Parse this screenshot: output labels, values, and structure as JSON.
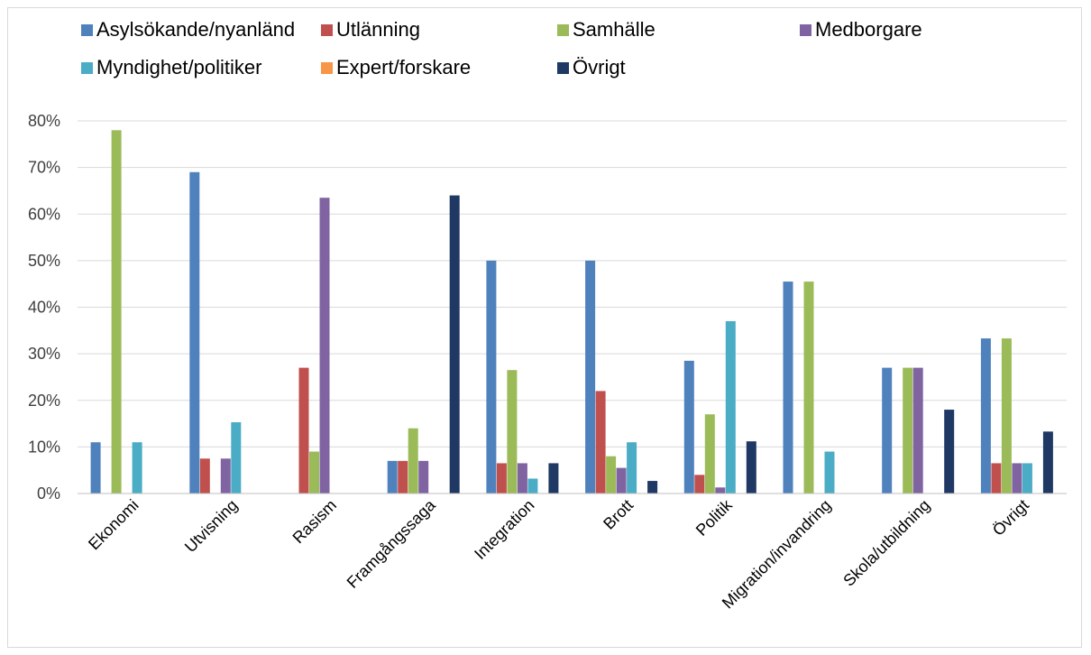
{
  "chart_data": {
    "type": "bar",
    "categories": [
      "Ekonomi",
      "Utvisning",
      "Rasism",
      "Framgångssaga",
      "Integration",
      "Brott",
      "Politik",
      "Migration/invandring",
      "Skola/utbildning",
      "Övrigt"
    ],
    "series": [
      {
        "name": "Asylsökande/nyanländ",
        "color": "#4f81bd",
        "values": [
          11,
          69,
          0,
          7,
          50,
          50,
          28.5,
          45.5,
          27,
          33.3
        ]
      },
      {
        "name": "Utlänning",
        "color": "#c0504d",
        "values": [
          0,
          7.5,
          27,
          7,
          6.5,
          22,
          4,
          0,
          0,
          6.5
        ]
      },
      {
        "name": "Samhälle",
        "color": "#9bbb59",
        "values": [
          78,
          0,
          9,
          14,
          26.5,
          8,
          17,
          45.5,
          27,
          33.3
        ]
      },
      {
        "name": "Medborgare",
        "color": "#8064a2",
        "values": [
          0,
          7.5,
          63.5,
          7,
          6.5,
          5.5,
          1.3,
          0,
          27,
          6.5
        ]
      },
      {
        "name": "Myndighet/politiker",
        "color": "#4bacc6",
        "values": [
          11,
          15.3,
          0,
          0,
          3.2,
          11,
          37,
          9,
          0,
          6.5
        ]
      },
      {
        "name": "Expert/forskare",
        "color": "#f79646",
        "values": [
          0,
          0,
          0,
          0,
          0,
          0,
          0,
          0,
          0,
          0
        ]
      },
      {
        "name": "Övrigt",
        "color": "#1f3864",
        "values": [
          0,
          0,
          0,
          64,
          6.5,
          2.7,
          11.2,
          0,
          18,
          13.3
        ]
      }
    ],
    "ylim": [
      0,
      80
    ],
    "yticks": [
      0,
      10,
      20,
      30,
      40,
      50,
      60,
      70,
      80
    ],
    "ytick_suffix": "%",
    "grid": true,
    "legend_position": "top"
  }
}
